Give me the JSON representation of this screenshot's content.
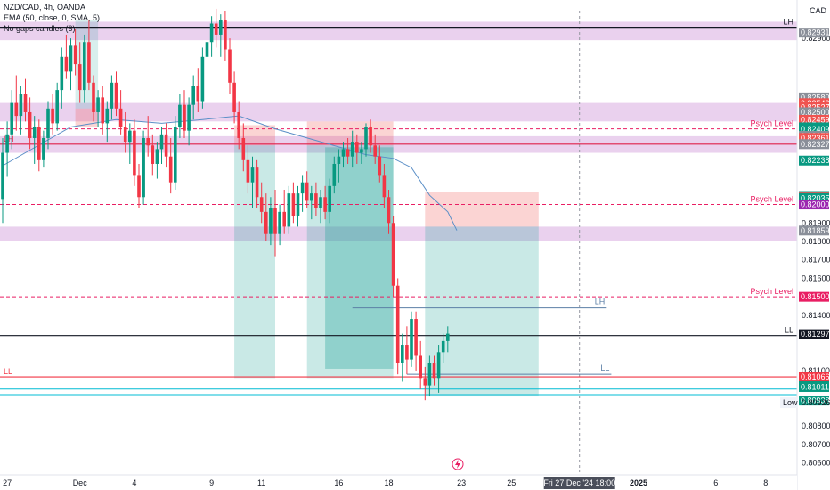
{
  "header": {
    "title": "NZD/CAD, 4h, OANDA",
    "ema_label": "EMA (50, close, 0, SMA, 5)",
    "no_gaps_label": "No gaps candles (6)",
    "currency": "CAD"
  },
  "chart_data": {
    "type": "candlestick",
    "symbol": "NZD/CAD",
    "timeframe": "4h",
    "ylim": [
      0.8055,
      0.8305
    ],
    "price_axis_ticks": [
      {
        "value": 0.829,
        "label": "0.82900"
      },
      {
        "value": 0.819,
        "label": "0.81900"
      },
      {
        "value": 0.818,
        "label": "0.81800"
      },
      {
        "value": 0.817,
        "label": "0.81700"
      },
      {
        "value": 0.816,
        "label": "0.81600"
      },
      {
        "value": 0.814,
        "label": "0.81400"
      },
      {
        "value": 0.811,
        "label": "0.81100"
      },
      {
        "value": 0.808,
        "label": "0.80800"
      },
      {
        "value": 0.807,
        "label": "0.80700"
      },
      {
        "value": 0.806,
        "label": "0.80600"
      }
    ],
    "price_badges": [
      {
        "value": 0.82931,
        "label": "0.82931",
        "color": "#8a8f99"
      },
      {
        "value": 0.8258,
        "label": "0.82580",
        "color": "#8a8f99"
      },
      {
        "value": 0.82549,
        "label": "0.82549",
        "color": "#ef5350"
      },
      {
        "value": 0.82527,
        "label": "0.82527",
        "color": "#ef5350"
      },
      {
        "value": 0.825,
        "label": "0.82500",
        "color": "#8a8f99"
      },
      {
        "value": 0.82459,
        "label": "0.82459",
        "color": "#ef5350"
      },
      {
        "value": 0.82418,
        "label": "0.82418",
        "color": "#089981"
      },
      {
        "value": 0.82409,
        "label": "0.82409",
        "color": "#089981"
      },
      {
        "value": 0.82372,
        "label": "0.82372",
        "color": "#8a8f99"
      },
      {
        "value": 0.82361,
        "label": "0.82361",
        "color": "#ef5350"
      },
      {
        "value": 0.82327,
        "label": "0.82327",
        "color": "#8a8f99"
      },
      {
        "value": 0.82238,
        "label": "0.82238",
        "color": "#089981"
      },
      {
        "value": 0.82046,
        "label": "0.82046",
        "color": "#089981"
      },
      {
        "value": 0.82043,
        "label": "0.82043",
        "color": "#ef5350"
      },
      {
        "value": 0.82035,
        "label": "0.82035",
        "color": "#089981"
      },
      {
        "value": 0.82,
        "label": "0.82000",
        "color": "#9c27b0"
      },
      {
        "value": 0.81859,
        "label": "0.81859",
        "color": "#8a8f99"
      },
      {
        "value": 0.815,
        "label": "0.81500",
        "color": "#e91e63"
      },
      {
        "value": 0.81297,
        "label": "0.81297",
        "color": "#131722"
      },
      {
        "value": 0.81297,
        "label": "0.81297",
        "color": "#131722"
      },
      {
        "value": 0.81066,
        "label": "0.81066",
        "color": "#f23645"
      },
      {
        "value": 0.81016,
        "label": "0.81016",
        "color": "#089981"
      },
      {
        "value": 0.81011,
        "label": "0.81011",
        "color": "#089981"
      },
      {
        "value": 0.80938,
        "label": "0.80938",
        "color": "#089981"
      }
    ],
    "low_marker": {
      "label": "Low",
      "value": 0.80926,
      "value_label": "0.80926"
    },
    "time_axis": [
      {
        "index": 1,
        "label": "27"
      },
      {
        "index": 17,
        "label": "Dec"
      },
      {
        "index": 29,
        "label": "4"
      },
      {
        "index": 46,
        "label": "9"
      },
      {
        "index": 57,
        "label": "11"
      },
      {
        "index": 74,
        "label": "16"
      },
      {
        "index": 85,
        "label": "18"
      },
      {
        "index": 101,
        "label": "23"
      },
      {
        "index": 112,
        "label": "25"
      },
      {
        "index": 140,
        "label": "2025"
      },
      {
        "index": 157,
        "label": "6"
      },
      {
        "index": 168,
        "label": "8"
      }
    ],
    "crosshair": {
      "index": 127,
      "label": "Fri 27 Dec '24  18:00"
    },
    "candles": [
      {
        "o": 0.8203,
        "h": 0.8236,
        "l": 0.819,
        "c": 0.8228
      },
      {
        "o": 0.8228,
        "h": 0.8245,
        "l": 0.8215,
        "c": 0.8238
      },
      {
        "o": 0.8238,
        "h": 0.8262,
        "l": 0.823,
        "c": 0.8255
      },
      {
        "o": 0.8255,
        "h": 0.827,
        "l": 0.824,
        "c": 0.8248
      },
      {
        "o": 0.8248,
        "h": 0.8264,
        "l": 0.8238,
        "c": 0.826
      },
      {
        "o": 0.826,
        "h": 0.8268,
        "l": 0.8245,
        "c": 0.825
      },
      {
        "o": 0.825,
        "h": 0.8258,
        "l": 0.823,
        "c": 0.8236
      },
      {
        "o": 0.8236,
        "h": 0.8248,
        "l": 0.8222,
        "c": 0.8242
      },
      {
        "o": 0.8242,
        "h": 0.8246,
        "l": 0.8218,
        "c": 0.8224
      },
      {
        "o": 0.8224,
        "h": 0.824,
        "l": 0.822,
        "c": 0.8236
      },
      {
        "o": 0.8236,
        "h": 0.8256,
        "l": 0.823,
        "c": 0.8252
      },
      {
        "o": 0.8252,
        "h": 0.826,
        "l": 0.8238,
        "c": 0.8244
      },
      {
        "o": 0.8244,
        "h": 0.8266,
        "l": 0.824,
        "c": 0.8262
      },
      {
        "o": 0.8262,
        "h": 0.8285,
        "l": 0.8252,
        "c": 0.828
      },
      {
        "o": 0.828,
        "h": 0.8292,
        "l": 0.8268,
        "c": 0.8272
      },
      {
        "o": 0.8272,
        "h": 0.829,
        "l": 0.8262,
        "c": 0.8286
      },
      {
        "o": 0.8286,
        "h": 0.8295,
        "l": 0.827,
        "c": 0.8276
      },
      {
        "o": 0.8276,
        "h": 0.8288,
        "l": 0.8255,
        "c": 0.8262
      },
      {
        "o": 0.8262,
        "h": 0.8292,
        "l": 0.8255,
        "c": 0.8288
      },
      {
        "o": 0.8288,
        "h": 0.83,
        "l": 0.8262,
        "c": 0.8266
      },
      {
        "o": 0.8266,
        "h": 0.827,
        "l": 0.8245,
        "c": 0.825
      },
      {
        "o": 0.825,
        "h": 0.8262,
        "l": 0.8242,
        "c": 0.8258
      },
      {
        "o": 0.8258,
        "h": 0.8264,
        "l": 0.8238,
        "c": 0.8244
      },
      {
        "o": 0.8244,
        "h": 0.8256,
        "l": 0.8234,
        "c": 0.8252
      },
      {
        "o": 0.8252,
        "h": 0.827,
        "l": 0.8246,
        "c": 0.8266
      },
      {
        "o": 0.8266,
        "h": 0.8272,
        "l": 0.8248,
        "c": 0.8252
      },
      {
        "o": 0.8252,
        "h": 0.8262,
        "l": 0.8238,
        "c": 0.8242
      },
      {
        "o": 0.8242,
        "h": 0.825,
        "l": 0.8228,
        "c": 0.8234
      },
      {
        "o": 0.8234,
        "h": 0.8244,
        "l": 0.8222,
        "c": 0.824
      },
      {
        "o": 0.824,
        "h": 0.8246,
        "l": 0.821,
        "c": 0.8216
      },
      {
        "o": 0.8216,
        "h": 0.8222,
        "l": 0.8198,
        "c": 0.8204
      },
      {
        "o": 0.8204,
        "h": 0.824,
        "l": 0.82,
        "c": 0.8236
      },
      {
        "o": 0.8236,
        "h": 0.8248,
        "l": 0.8226,
        "c": 0.8232
      },
      {
        "o": 0.8232,
        "h": 0.8238,
        "l": 0.8216,
        "c": 0.8222
      },
      {
        "o": 0.8222,
        "h": 0.8234,
        "l": 0.8214,
        "c": 0.823
      },
      {
        "o": 0.823,
        "h": 0.8242,
        "l": 0.8222,
        "c": 0.8238
      },
      {
        "o": 0.8238,
        "h": 0.8244,
        "l": 0.822,
        "c": 0.8226
      },
      {
        "o": 0.8226,
        "h": 0.8236,
        "l": 0.8206,
        "c": 0.8212
      },
      {
        "o": 0.8212,
        "h": 0.8248,
        "l": 0.8208,
        "c": 0.8242
      },
      {
        "o": 0.8242,
        "h": 0.826,
        "l": 0.8236,
        "c": 0.8254
      },
      {
        "o": 0.8254,
        "h": 0.8262,
        "l": 0.8236,
        "c": 0.824
      },
      {
        "o": 0.824,
        "h": 0.8258,
        "l": 0.8232,
        "c": 0.8254
      },
      {
        "o": 0.8254,
        "h": 0.827,
        "l": 0.8246,
        "c": 0.8264
      },
      {
        "o": 0.8264,
        "h": 0.8274,
        "l": 0.825,
        "c": 0.8256
      },
      {
        "o": 0.8256,
        "h": 0.8285,
        "l": 0.8252,
        "c": 0.828
      },
      {
        "o": 0.828,
        "h": 0.8292,
        "l": 0.8272,
        "c": 0.8288
      },
      {
        "o": 0.8288,
        "h": 0.8302,
        "l": 0.828,
        "c": 0.8298
      },
      {
        "o": 0.8298,
        "h": 0.8306,
        "l": 0.8285,
        "c": 0.8292
      },
      {
        "o": 0.8292,
        "h": 0.8303,
        "l": 0.828,
        "c": 0.83
      },
      {
        "o": 0.83,
        "h": 0.8305,
        "l": 0.8278,
        "c": 0.8284
      },
      {
        "o": 0.8284,
        "h": 0.829,
        "l": 0.826,
        "c": 0.8266
      },
      {
        "o": 0.8266,
        "h": 0.8272,
        "l": 0.8244,
        "c": 0.825
      },
      {
        "o": 0.825,
        "h": 0.8256,
        "l": 0.823,
        "c": 0.8236
      },
      {
        "o": 0.8236,
        "h": 0.8244,
        "l": 0.8218,
        "c": 0.8224
      },
      {
        "o": 0.8224,
        "h": 0.8232,
        "l": 0.8206,
        "c": 0.8212
      },
      {
        "o": 0.8212,
        "h": 0.8226,
        "l": 0.8198,
        "c": 0.822
      },
      {
        "o": 0.822,
        "h": 0.8224,
        "l": 0.8198,
        "c": 0.8204
      },
      {
        "o": 0.8204,
        "h": 0.8212,
        "l": 0.819,
        "c": 0.8196
      },
      {
        "o": 0.8196,
        "h": 0.8206,
        "l": 0.818,
        "c": 0.8184
      },
      {
        "o": 0.8184,
        "h": 0.8204,
        "l": 0.8178,
        "c": 0.8198
      },
      {
        "o": 0.8198,
        "h": 0.8208,
        "l": 0.8172,
        "c": 0.8184
      },
      {
        "o": 0.8184,
        "h": 0.82,
        "l": 0.8178,
        "c": 0.8196
      },
      {
        "o": 0.8196,
        "h": 0.8208,
        "l": 0.8184,
        "c": 0.8188
      },
      {
        "o": 0.8188,
        "h": 0.821,
        "l": 0.8184,
        "c": 0.8206
      },
      {
        "o": 0.8206,
        "h": 0.8212,
        "l": 0.819,
        "c": 0.8194
      },
      {
        "o": 0.8194,
        "h": 0.821,
        "l": 0.8188,
        "c": 0.8206
      },
      {
        "o": 0.8206,
        "h": 0.8216,
        "l": 0.8196,
        "c": 0.8212
      },
      {
        "o": 0.8212,
        "h": 0.8218,
        "l": 0.8198,
        "c": 0.8202
      },
      {
        "o": 0.8202,
        "h": 0.821,
        "l": 0.8192,
        "c": 0.8206
      },
      {
        "o": 0.8206,
        "h": 0.8212,
        "l": 0.8194,
        "c": 0.8198
      },
      {
        "o": 0.8198,
        "h": 0.8208,
        "l": 0.819,
        "c": 0.8204
      },
      {
        "o": 0.8204,
        "h": 0.821,
        "l": 0.8192,
        "c": 0.8196
      },
      {
        "o": 0.8196,
        "h": 0.8214,
        "l": 0.819,
        "c": 0.821
      },
      {
        "o": 0.821,
        "h": 0.8226,
        "l": 0.8206,
        "c": 0.8222
      },
      {
        "o": 0.8222,
        "h": 0.823,
        "l": 0.8212,
        "c": 0.8226
      },
      {
        "o": 0.8226,
        "h": 0.8234,
        "l": 0.822,
        "c": 0.823
      },
      {
        "o": 0.823,
        "h": 0.8236,
        "l": 0.8222,
        "c": 0.8226
      },
      {
        "o": 0.8226,
        "h": 0.824,
        "l": 0.822,
        "c": 0.8234
      },
      {
        "o": 0.8234,
        "h": 0.8238,
        "l": 0.8222,
        "c": 0.8228
      },
      {
        "o": 0.8228,
        "h": 0.8234,
        "l": 0.8222,
        "c": 0.823
      },
      {
        "o": 0.823,
        "h": 0.8244,
        "l": 0.8226,
        "c": 0.8242
      },
      {
        "o": 0.8242,
        "h": 0.8246,
        "l": 0.8228,
        "c": 0.8232
      },
      {
        "o": 0.8232,
        "h": 0.8238,
        "l": 0.8222,
        "c": 0.8226
      },
      {
        "o": 0.8226,
        "h": 0.8232,
        "l": 0.8212,
        "c": 0.8216
      },
      {
        "o": 0.8216,
        "h": 0.8222,
        "l": 0.8198,
        "c": 0.8204
      },
      {
        "o": 0.8204,
        "h": 0.8208,
        "l": 0.8184,
        "c": 0.819
      },
      {
        "o": 0.819,
        "h": 0.8194,
        "l": 0.815,
        "c": 0.8156
      },
      {
        "o": 0.8156,
        "h": 0.816,
        "l": 0.8108,
        "c": 0.8114
      },
      {
        "o": 0.8114,
        "h": 0.813,
        "l": 0.8104,
        "c": 0.8124
      },
      {
        "o": 0.8124,
        "h": 0.8134,
        "l": 0.8108,
        "c": 0.8116
      },
      {
        "o": 0.8116,
        "h": 0.8142,
        "l": 0.8112,
        "c": 0.8138
      },
      {
        "o": 0.8138,
        "h": 0.8142,
        "l": 0.811,
        "c": 0.8118
      },
      {
        "o": 0.8118,
        "h": 0.8126,
        "l": 0.81,
        "c": 0.8106
      },
      {
        "o": 0.8106,
        "h": 0.8112,
        "l": 0.8094,
        "c": 0.8102
      },
      {
        "o": 0.8102,
        "h": 0.8118,
        "l": 0.8096,
        "c": 0.8114
      },
      {
        "o": 0.8114,
        "h": 0.8118,
        "l": 0.8102,
        "c": 0.8106
      },
      {
        "o": 0.8106,
        "h": 0.8124,
        "l": 0.8098,
        "c": 0.812
      },
      {
        "o": 0.812,
        "h": 0.813,
        "l": 0.8114,
        "c": 0.8126
      },
      {
        "o": 0.8126,
        "h": 0.8134,
        "l": 0.812,
        "c": 0.813
      }
    ],
    "ema50": [
      [
        0,
        0.8221
      ],
      [
        15,
        0.8242
      ],
      [
        25,
        0.8246
      ],
      [
        35,
        0.8244
      ],
      [
        44,
        0.8246
      ],
      [
        52,
        0.8248
      ],
      [
        60,
        0.8241
      ],
      [
        70,
        0.8234
      ],
      [
        80,
        0.8227
      ],
      [
        86,
        0.8225
      ],
      [
        90,
        0.822
      ],
      [
        94,
        0.8205
      ],
      [
        98,
        0.8196
      ],
      [
        100,
        0.8186
      ]
    ],
    "horizontal_lines": [
      {
        "value": 0.8296,
        "color": "#131722",
        "width": 1.2,
        "dash": "",
        "label": "LH",
        "label_side": "right"
      },
      {
        "value": 0.8241,
        "color": "#e91e63",
        "width": 1,
        "dash": "4,3",
        "label": "Psych Level",
        "label_side": "right"
      },
      {
        "value": 0.82327,
        "color": "#e0204a",
        "width": 1.2,
        "dash": "",
        "label": "LH",
        "label_side": "left"
      },
      {
        "value": 0.82,
        "color": "#e91e63",
        "width": 1,
        "dash": "4,3",
        "label": "Psych Level",
        "label_side": "right"
      },
      {
        "value": 0.815,
        "color": "#e91e63",
        "width": 1,
        "dash": "4,3",
        "label": "Psych Level",
        "label_side": "right"
      },
      {
        "value": 0.8129,
        "color": "#131722",
        "width": 1.2,
        "dash": "",
        "label": "LL",
        "label_side": "right"
      },
      {
        "value": 0.81066,
        "color": "#f23645",
        "width": 1.2,
        "dash": "",
        "label": "LL",
        "label_side": "left"
      },
      {
        "value": 0.81,
        "color": "#00bcd4",
        "width": 1,
        "dash": "",
        "label": "",
        "label_side": "right"
      },
      {
        "value": 0.8097,
        "color": "#00bcd4",
        "width": 1,
        "dash": "",
        "label": "",
        "label_side": "right"
      }
    ],
    "zone_bands": [
      {
        "from": 0.8289,
        "to": 0.8299,
        "color": "rgba(186,104,200,0.30)"
      },
      {
        "from": 0.8245,
        "to": 0.8255,
        "color": "rgba(186,104,200,0.30)"
      },
      {
        "from": 0.8228,
        "to": 0.8237,
        "color": "rgba(186,104,200,0.30)"
      },
      {
        "from": 0.818,
        "to": 0.8188,
        "color": "rgba(186,104,200,0.30)"
      }
    ],
    "position_boxes": [
      {
        "from_index": 16,
        "to_index": 21,
        "top": 0.83,
        "bottom": 0.8252,
        "color": "rgba(38,166,154,0.18)"
      },
      {
        "from_index": 16,
        "to_index": 21,
        "top": 0.8252,
        "bottom": 0.8242,
        "color": "rgba(239,83,80,0.25)"
      },
      {
        "from_index": 51,
        "to_index": 60,
        "top": 0.8243,
        "bottom": 0.8232,
        "color": "rgba(239,83,80,0.25)"
      },
      {
        "from_index": 51,
        "to_index": 60,
        "top": 0.8232,
        "bottom": 0.8106,
        "color": "rgba(38,166,154,0.25)"
      },
      {
        "from_index": 67,
        "to_index": 86,
        "top": 0.8245,
        "bottom": 0.8232,
        "color": "rgba(239,83,80,0.25)"
      },
      {
        "from_index": 67,
        "to_index": 86,
        "top": 0.8232,
        "bottom": 0.8106,
        "color": "rgba(38,166,154,0.25)"
      },
      {
        "from_index": 71,
        "to_index": 86,
        "top": 0.8231,
        "bottom": 0.8111,
        "color": "rgba(38,166,154,0.35)"
      },
      {
        "from_index": 93,
        "to_index": 118,
        "top": 0.8207,
        "bottom": 0.8188,
        "color": "rgba(239,83,80,0.25)"
      },
      {
        "from_index": 93,
        "to_index": 118,
        "top": 0.8188,
        "bottom": 0.8096,
        "color": "rgba(38,166,154,0.25)"
      }
    ],
    "segments": [
      {
        "from_index": 77,
        "to_index": 133,
        "value": 0.8144,
        "color": "#5b7fa6",
        "label": "LH"
      },
      {
        "from_index": 89,
        "to_index": 134,
        "value": 0.8108,
        "color": "#5b7fa6",
        "label": "LL"
      }
    ]
  }
}
